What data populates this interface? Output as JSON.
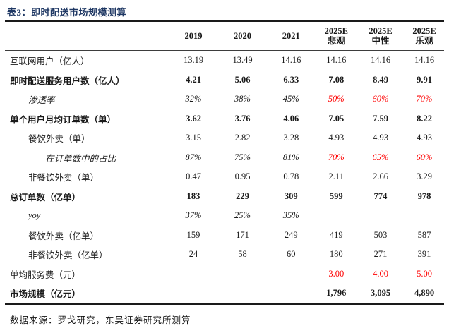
{
  "title": "表3：即时配送市场规模测算",
  "source_note": "数据来源：罗戈研究，东吴证券研究所测算",
  "colors": {
    "title_navy": "#1F3864",
    "forecast_red": "#FF0000",
    "rule_black": "#1a1a1a"
  },
  "table": {
    "columns": [
      {
        "key": "label",
        "lines": [
          ""
        ]
      },
      {
        "key": "y2019",
        "lines": [
          "2019"
        ]
      },
      {
        "key": "y2020",
        "lines": [
          "2020"
        ]
      },
      {
        "key": "y2021",
        "lines": [
          "2021"
        ]
      },
      {
        "key": "e2025_pessimistic",
        "lines": [
          "2025E",
          "悲观"
        ]
      },
      {
        "key": "e2025_neutral",
        "lines": [
          "2025E",
          "中性"
        ]
      },
      {
        "key": "e2025_optimistic",
        "lines": [
          "2025E",
          "乐观"
        ]
      }
    ],
    "rows": [
      {
        "label": "互联网用户（亿人）",
        "indent": 0,
        "bold": false,
        "italic": false,
        "red_forecast": false,
        "values": [
          "13.19",
          "13.49",
          "14.16",
          "14.16",
          "14.16",
          "14.16"
        ]
      },
      {
        "label": "即时配送服务用户数（亿人）",
        "indent": 0,
        "bold": true,
        "italic": false,
        "red_forecast": false,
        "values": [
          "4.21",
          "5.06",
          "6.33",
          "7.08",
          "8.49",
          "9.91"
        ]
      },
      {
        "label": "渗透率",
        "indent": 1,
        "bold": false,
        "italic": true,
        "red_forecast": true,
        "values": [
          "32%",
          "38%",
          "45%",
          "50%",
          "60%",
          "70%"
        ]
      },
      {
        "label": "单个用户月均订单数（单）",
        "indent": 0,
        "bold": true,
        "italic": false,
        "red_forecast": false,
        "values": [
          "3.62",
          "3.76",
          "4.06",
          "7.05",
          "7.59",
          "8.22"
        ]
      },
      {
        "label": "餐饮外卖（单）",
        "indent": 1,
        "bold": false,
        "italic": false,
        "red_forecast": false,
        "values": [
          "3.15",
          "2.82",
          "3.28",
          "4.93",
          "4.93",
          "4.93"
        ]
      },
      {
        "label": "在订单数中的占比",
        "indent": 2,
        "bold": false,
        "italic": true,
        "red_forecast": true,
        "values": [
          "87%",
          "75%",
          "81%",
          "70%",
          "65%",
          "60%"
        ]
      },
      {
        "label": "非餐饮外卖（单）",
        "indent": 1,
        "bold": false,
        "italic": false,
        "red_forecast": false,
        "values": [
          "0.47",
          "0.95",
          "0.78",
          "2.11",
          "2.66",
          "3.29"
        ]
      },
      {
        "label": "总订单数（亿单）",
        "indent": 0,
        "bold": true,
        "italic": false,
        "red_forecast": false,
        "values": [
          "183",
          "229",
          "309",
          "599",
          "774",
          "978"
        ]
      },
      {
        "label": "yoy",
        "indent": 1,
        "bold": false,
        "italic": true,
        "red_forecast": false,
        "values": [
          "37%",
          "25%",
          "35%",
          "",
          "",
          ""
        ]
      },
      {
        "label": "餐饮外卖（亿单）",
        "indent": 1,
        "bold": false,
        "italic": false,
        "red_forecast": false,
        "values": [
          "159",
          "171",
          "249",
          "419",
          "503",
          "587"
        ]
      },
      {
        "label": "非餐饮外卖（亿单）",
        "indent": 1,
        "bold": false,
        "italic": false,
        "red_forecast": false,
        "values": [
          "24",
          "58",
          "60",
          "180",
          "271",
          "391"
        ]
      },
      {
        "label": "单均服务费（元）",
        "indent": 0,
        "bold": false,
        "italic": false,
        "red_forecast": true,
        "values": [
          "",
          "",
          "",
          "3.00",
          "4.00",
          "5.00"
        ]
      },
      {
        "label": "市场规模（亿元）",
        "indent": 0,
        "bold": true,
        "italic": false,
        "red_forecast": false,
        "values": [
          "",
          "",
          "",
          "1,796",
          "3,095",
          "4,890"
        ]
      }
    ]
  }
}
